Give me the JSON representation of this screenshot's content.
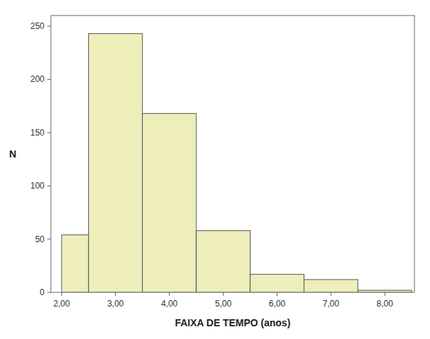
{
  "chart_data": {
    "type": "histogram",
    "xlabel": "FAIXA DE TEMPO (anos)",
    "ylabel": "N",
    "bins": [
      2.0,
      2.5,
      3.5,
      4.5,
      5.5,
      6.5,
      7.5,
      8.5
    ],
    "values": [
      54,
      243,
      168,
      58,
      17,
      12,
      2
    ],
    "color": "#EEEEBB",
    "xlim": [
      1.8,
      8.55
    ],
    "ylim": [
      0,
      260
    ],
    "xticks": [
      {
        "value": 2.0,
        "label": "2,00"
      },
      {
        "value": 3.0,
        "label": "3,00"
      },
      {
        "value": 4.0,
        "label": "4,00"
      },
      {
        "value": 5.0,
        "label": "5,00"
      },
      {
        "value": 6.0,
        "label": "6,00"
      },
      {
        "value": 7.0,
        "label": "7,00"
      },
      {
        "value": 8.0,
        "label": "8,00"
      }
    ],
    "yticks": [
      0,
      50,
      100,
      150,
      200,
      250
    ]
  }
}
